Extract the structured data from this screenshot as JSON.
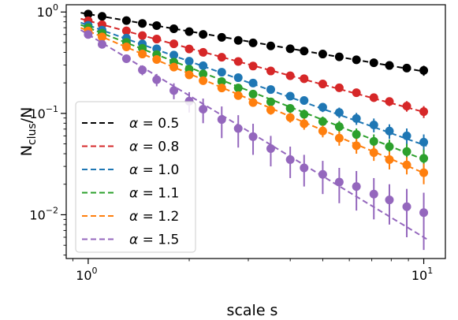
{
  "chart_data": {
    "type": "scatter",
    "xlabel": "scale s",
    "ylabel_main": "N",
    "ylabel_sub": "clus",
    "ylabel_tail": "/N",
    "x_scale": "log",
    "y_scale": "log",
    "xlim": [
      0.86,
      11.6
    ],
    "ylim": [
      0.0037,
      1.18
    ],
    "x_ticks": [
      {
        "value": 1,
        "base": "10",
        "exp": "0"
      },
      {
        "value": 10,
        "base": "10",
        "exp": "1"
      }
    ],
    "y_ticks": [
      {
        "value": 1,
        "base": "10",
        "exp": "0"
      },
      {
        "value": 0.1,
        "base": "10",
        "exp": "−1"
      },
      {
        "value": 0.01,
        "base": "10",
        "exp": "−2"
      }
    ],
    "grid": false,
    "legend_position": "lower-left",
    "x": [
      1.0,
      1.1,
      1.3,
      1.45,
      1.6,
      1.8,
      2.0,
      2.2,
      2.5,
      2.8,
      3.1,
      3.5,
      4.0,
      4.4,
      5.0,
      5.6,
      6.3,
      7.1,
      7.9,
      8.9,
      10.0
    ],
    "series": [
      {
        "name": "α = 0.5",
        "legend_symbol": "α",
        "legend_text": " = 0.5",
        "color": "#000000",
        "slope": -0.566,
        "intercept": 0.955,
        "y": [
          0.955,
          0.906,
          0.823,
          0.772,
          0.735,
          0.684,
          0.64,
          0.602,
          0.563,
          0.525,
          0.496,
          0.463,
          0.434,
          0.412,
          0.385,
          0.361,
          0.338,
          0.316,
          0.297,
          0.28,
          0.265
        ],
        "err": [
          0.02,
          0.02,
          0.02,
          0.02,
          0.02,
          0.02,
          0.02,
          0.02,
          0.02,
          0.02,
          0.02,
          0.02,
          0.02,
          0.02,
          0.02,
          0.02,
          0.02,
          0.02,
          0.02,
          0.02,
          0.03
        ]
      },
      {
        "name": "α = 0.8",
        "legend_symbol": "α",
        "legend_text": " = 0.8",
        "color": "#d62728",
        "slope": -0.9,
        "intercept": 0.82,
        "y": [
          0.82,
          0.75,
          0.652,
          0.586,
          0.541,
          0.485,
          0.432,
          0.4,
          0.358,
          0.325,
          0.293,
          0.262,
          0.235,
          0.22,
          0.195,
          0.179,
          0.16,
          0.143,
          0.131,
          0.118,
          0.104
        ],
        "err": [
          0.02,
          0.02,
          0.02,
          0.02,
          0.02,
          0.015,
          0.015,
          0.012,
          0.012,
          0.012,
          0.012,
          0.012,
          0.012,
          0.012,
          0.012,
          0.012,
          0.012,
          0.013,
          0.013,
          0.014,
          0.014
        ]
      },
      {
        "name": "α = 1.0",
        "legend_symbol": "α",
        "legend_text": " = 1.0",
        "color": "#1f77b4",
        "slope": -1.18,
        "intercept": 0.74,
        "y": [
          0.74,
          0.663,
          0.552,
          0.484,
          0.434,
          0.376,
          0.327,
          0.295,
          0.255,
          0.225,
          0.199,
          0.172,
          0.148,
          0.134,
          0.115,
          0.102,
          0.089,
          0.077,
          0.067,
          0.06,
          0.052
        ],
        "err": [
          0.02,
          0.02,
          0.02,
          0.015,
          0.015,
          0.013,
          0.012,
          0.012,
          0.012,
          0.012,
          0.012,
          0.012,
          0.012,
          0.012,
          0.012,
          0.012,
          0.012,
          0.012,
          0.011,
          0.011,
          0.01
        ]
      },
      {
        "name": "α = 1.1",
        "legend_symbol": "α",
        "legend_text": " = 1.1",
        "color": "#2ca02c",
        "slope": -1.3,
        "intercept": 0.7,
        "y": [
          0.7,
          0.618,
          0.502,
          0.438,
          0.38,
          0.32,
          0.273,
          0.245,
          0.206,
          0.178,
          0.155,
          0.13,
          0.112,
          0.098,
          0.083,
          0.074,
          0.062,
          0.053,
          0.047,
          0.042,
          0.036
        ],
        "err": [
          0.02,
          0.02,
          0.015,
          0.013,
          0.013,
          0.012,
          0.012,
          0.012,
          0.012,
          0.012,
          0.012,
          0.011,
          0.011,
          0.011,
          0.01,
          0.01,
          0.009,
          0.009,
          0.008,
          0.008,
          0.008
        ]
      },
      {
        "name": "α = 1.2",
        "legend_symbol": "α",
        "legend_text": " = 1.2",
        "color": "#ff7f0e",
        "slope": -1.4,
        "intercept": 0.65,
        "y": [
          0.65,
          0.568,
          0.453,
          0.385,
          0.34,
          0.286,
          0.24,
          0.21,
          0.178,
          0.15,
          0.128,
          0.108,
          0.091,
          0.079,
          0.067,
          0.057,
          0.048,
          0.041,
          0.035,
          0.031,
          0.026
        ],
        "err": [
          0.02,
          0.02,
          0.015,
          0.013,
          0.012,
          0.012,
          0.012,
          0.012,
          0.012,
          0.012,
          0.011,
          0.011,
          0.01,
          0.01,
          0.009,
          0.009,
          0.008,
          0.007,
          0.007,
          0.006,
          0.006
        ]
      },
      {
        "name": "α = 1.5",
        "legend_symbol": "α",
        "legend_text": " = 1.5",
        "color": "#9467bd",
        "slope": -2.0,
        "intercept": 0.6,
        "y": [
          0.6,
          0.48,
          0.346,
          0.268,
          0.215,
          0.168,
          0.132,
          0.11,
          0.087,
          0.071,
          0.059,
          0.045,
          0.035,
          0.029,
          0.025,
          0.021,
          0.019,
          0.016,
          0.014,
          0.012,
          0.0105
        ],
        "err": [
          0.03,
          0.03,
          0.03,
          0.03,
          0.03,
          0.03,
          0.03,
          0.03,
          0.03,
          0.025,
          0.02,
          0.015,
          0.012,
          0.01,
          0.009,
          0.008,
          0.008,
          0.007,
          0.006,
          0.006,
          0.006
        ]
      }
    ]
  }
}
